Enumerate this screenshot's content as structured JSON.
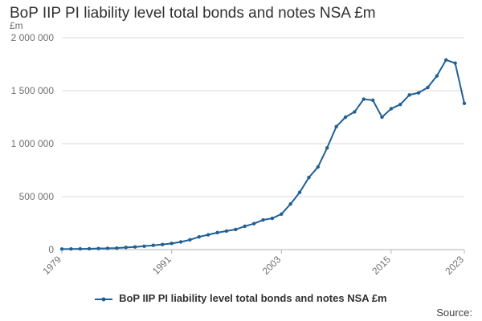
{
  "title": "BoP IIP PI liability level total bonds and notes NSA £m",
  "source_label": "Source:",
  "colors": {
    "series": "#206095",
    "grid": "#d9d9d9",
    "axis_text": "#707071",
    "baseline": "#b3b3b3"
  },
  "chart_data": {
    "type": "line",
    "title": "BoP IIP PI liability level total bonds and notes NSA £m",
    "ylabel": "£m",
    "xlabel": "",
    "ylim": [
      0,
      2000000
    ],
    "yticks": [
      0,
      500000,
      1000000,
      1500000,
      2000000
    ],
    "ytick_labels": [
      "0",
      "500 000",
      "1 000 000",
      "1 500 000",
      "2 000 000"
    ],
    "xlim": [
      1979,
      2023
    ],
    "xticks": [
      1979,
      1991,
      2003,
      2015,
      2023
    ],
    "xtick_labels": [
      "1979",
      "1991",
      "2003",
      "2015",
      "2023"
    ],
    "grid": "horizontal",
    "legend_position": "bottom",
    "series": [
      {
        "name": "BoP IIP PI liability level total bonds and notes NSA £m",
        "x": [
          1979,
          1980,
          1981,
          1982,
          1983,
          1984,
          1985,
          1986,
          1987,
          1988,
          1989,
          1990,
          1991,
          1992,
          1993,
          1994,
          1995,
          1996,
          1997,
          1998,
          1999,
          2000,
          2001,
          2002,
          2003,
          2004,
          2005,
          2006,
          2007,
          2008,
          2009,
          2010,
          2011,
          2012,
          2013,
          2014,
          2015,
          2016,
          2017,
          2018,
          2019,
          2020,
          2021,
          2022,
          2023
        ],
        "values": [
          5000,
          6000,
          7000,
          8000,
          10000,
          12000,
          14000,
          20000,
          25000,
          32000,
          40000,
          48000,
          58000,
          72000,
          92000,
          120000,
          140000,
          160000,
          175000,
          190000,
          220000,
          245000,
          280000,
          295000,
          335000,
          430000,
          540000,
          680000,
          780000,
          960000,
          1160000,
          1250000,
          1300000,
          1420000,
          1410000,
          1250000,
          1330000,
          1370000,
          1460000,
          1480000,
          1530000,
          1640000,
          1790000,
          1760000,
          1380000
        ]
      }
    ]
  }
}
